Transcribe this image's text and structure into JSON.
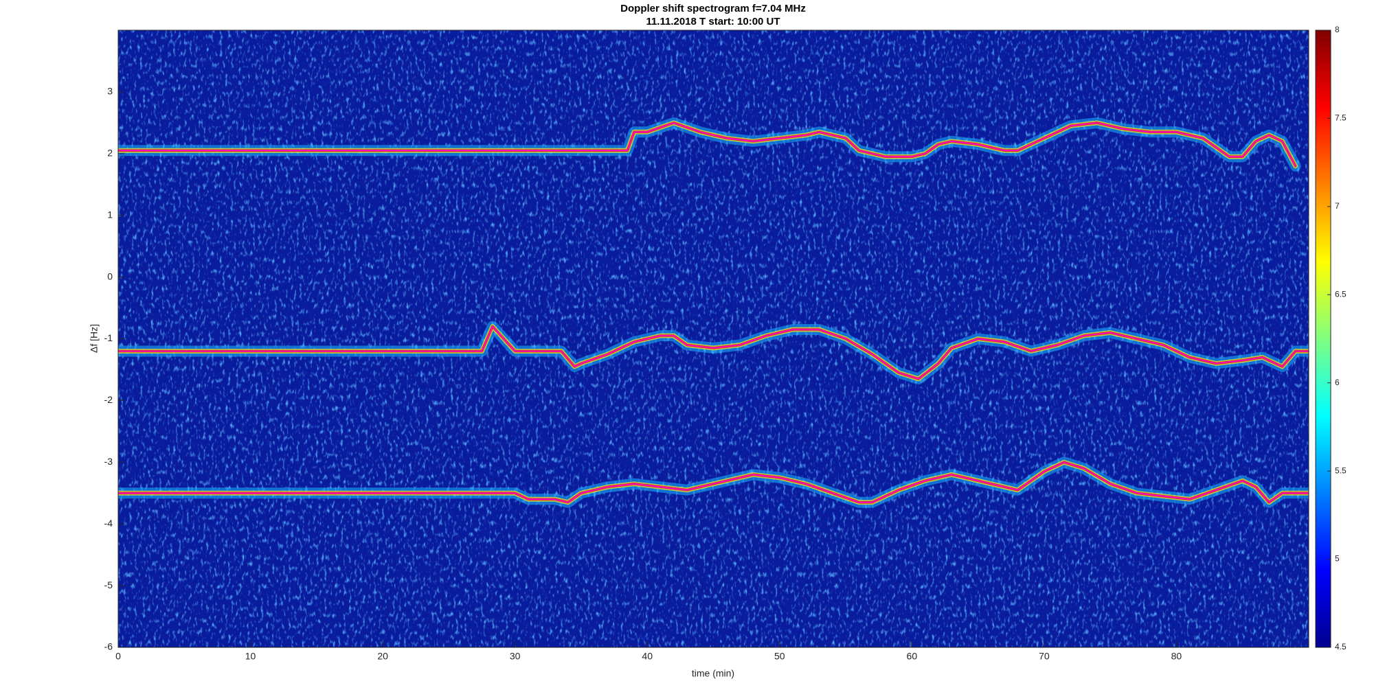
{
  "chart_data": {
    "type": "spectrogram",
    "title": "Doppler shift spectrogram f=7.04 MHz",
    "subtitle": "11.11.2018   T start: 10:00 UT",
    "xlabel": "time (min)",
    "ylabel": "Δf [Hz]",
    "xlim": [
      0,
      90
    ],
    "xticks": [
      0,
      10,
      20,
      30,
      40,
      50,
      60,
      70,
      80
    ],
    "ylim": [
      -6,
      4
    ],
    "yticks": [
      -6,
      -5,
      -4,
      -3,
      -2,
      -1,
      0,
      1,
      2,
      3
    ],
    "background": "#0a1c9e",
    "colorbar": {
      "colormap": "jet",
      "lim": [
        4.5,
        8
      ],
      "ticks": [
        4.5,
        5,
        5.5,
        6,
        6.5,
        7,
        7.5,
        8
      ]
    },
    "series": [
      {
        "color": "#ff00ff",
        "x": [
          0,
          38.5,
          39,
          40,
          42,
          44,
          46,
          48,
          50,
          52,
          53,
          55,
          56,
          58,
          60,
          61,
          62,
          63,
          65,
          67,
          68,
          70,
          72,
          74,
          76,
          78,
          80,
          82,
          84,
          85,
          86,
          87,
          88,
          89
        ],
        "values": [
          2.05,
          2.05,
          2.35,
          2.35,
          2.5,
          2.35,
          2.25,
          2.2,
          2.25,
          2.3,
          2.35,
          2.25,
          2.05,
          1.95,
          1.95,
          2.0,
          2.15,
          2.2,
          2.15,
          2.05,
          2.05,
          2.25,
          2.45,
          2.5,
          2.4,
          2.35,
          2.35,
          2.25,
          1.95,
          1.95,
          2.2,
          2.3,
          2.2,
          1.8
        ]
      },
      {
        "color": "#ff00ff",
        "x": [
          0,
          27.5,
          28.3,
          30,
          33.5,
          34.5,
          35,
          37,
          39,
          41,
          42,
          43,
          45,
          47,
          49,
          51,
          53,
          55,
          57,
          59,
          60.5,
          62,
          63,
          65,
          67,
          69,
          71,
          73,
          75,
          77,
          79,
          81,
          83,
          85,
          86.5,
          88,
          89,
          90
        ],
        "values": [
          -1.2,
          -1.2,
          -0.8,
          -1.2,
          -1.2,
          -1.45,
          -1.4,
          -1.25,
          -1.05,
          -0.95,
          -0.95,
          -1.1,
          -1.15,
          -1.1,
          -0.95,
          -0.85,
          -0.85,
          -1.0,
          -1.25,
          -1.55,
          -1.65,
          -1.4,
          -1.15,
          -1.0,
          -1.05,
          -1.2,
          -1.1,
          -0.95,
          -0.9,
          -1.0,
          -1.1,
          -1.3,
          -1.4,
          -1.35,
          -1.3,
          -1.45,
          -1.2,
          -1.2
        ]
      },
      {
        "color": "#ff00ff",
        "x": [
          0,
          30,
          31,
          33,
          34,
          35,
          37,
          39,
          41,
          43,
          45,
          47,
          48,
          50,
          52,
          54,
          56,
          57,
          59,
          61,
          63,
          65,
          67,
          68,
          70,
          71.5,
          73,
          75,
          77,
          79,
          81,
          83,
          85,
          86,
          87,
          88,
          90
        ],
        "values": [
          -3.5,
          -3.5,
          -3.6,
          -3.6,
          -3.65,
          -3.5,
          -3.4,
          -3.35,
          -3.4,
          -3.45,
          -3.35,
          -3.25,
          -3.2,
          -3.25,
          -3.35,
          -3.5,
          -3.65,
          -3.65,
          -3.45,
          -3.3,
          -3.2,
          -3.3,
          -3.4,
          -3.45,
          -3.15,
          -3.0,
          -3.1,
          -3.35,
          -3.5,
          -3.55,
          -3.6,
          -3.45,
          -3.3,
          -3.4,
          -3.65,
          -3.5,
          -3.5
        ]
      }
    ]
  }
}
